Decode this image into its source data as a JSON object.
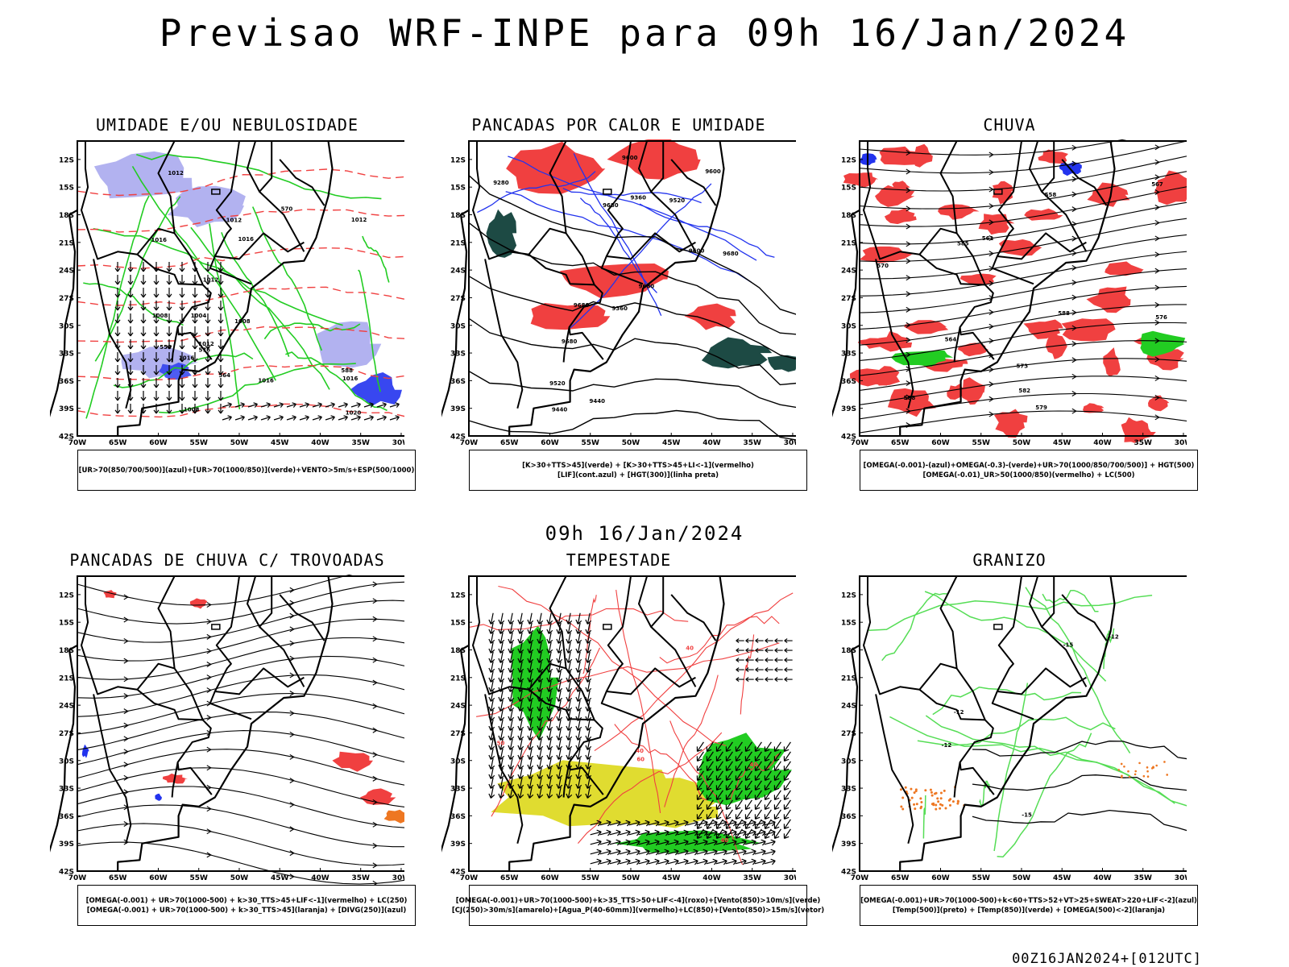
{
  "page": {
    "title": "Previsao WRF-INPE  para 09h 16/Jan/2024",
    "mid_title": "09h 16/Jan/2024",
    "footer": "00Z16JAN2024+[012UTC]"
  },
  "axes": {
    "lat_labels": [
      "12S",
      "15S",
      "18S",
      "21S",
      "24S",
      "27S",
      "30S",
      "33S",
      "36S",
      "39S",
      "42S"
    ],
    "lon_labels": [
      "70W",
      "65W",
      "60W",
      "55W",
      "50W",
      "45W",
      "40W",
      "35W",
      "30W"
    ]
  },
  "panels": [
    {
      "id": "umidade",
      "title": "UMIDADE E/OU NEBULOSIDADE",
      "legend": [
        "[UR>70(850/700/500)](azul)+[UR>70(1000/850)](verde)+VENTO>5m/s+ESP(500/1000)"
      ],
      "contour_labels": [
        "1016",
        "1016",
        "1016",
        "1012",
        "1020",
        "1016",
        "1012",
        "1008",
        "1004",
        "1012",
        "1008",
        "1012",
        "1008",
        "1012",
        "1016",
        "576",
        "570",
        "564",
        "558",
        "588"
      ]
    },
    {
      "id": "pancadas_calor",
      "title": "PANCADAS POR CALOR E UMIDADE",
      "legend": [
        "[K>30+TTS>45](verde) + [K>30+TTS>45+LI<-1](vermelho)",
        "[LIF](cont.azul) + [HGT(300)](linha preta)"
      ],
      "contour_labels": [
        "9680",
        "9680",
        "9680",
        "9680",
        "9600",
        "9600",
        "9520",
        "9520",
        "9440",
        "9440",
        "9360",
        "9360",
        "9280",
        "9600",
        "9680"
      ]
    },
    {
      "id": "chuva",
      "title": "CHUVA",
      "legend": [
        "[OMEGA(-0.001)-(azul)+OMEGA(-0.3)-(verde)+UR>70(1000/850/700/500)] + HGT(500)",
        "[OMEGA(-0.01)_UR>50(1000/850)(vermelho) + LC(500)"
      ],
      "contour_labels": [
        "588",
        "585",
        "582",
        "579",
        "576",
        "573",
        "570",
        "567",
        "564",
        "561",
        "558",
        "588"
      ]
    },
    {
      "id": "pancadas_trovoadas",
      "title": "PANCADAS DE CHUVA C/ TROVOADAS",
      "legend": [
        "[OMEGA(-0.001) + UR>70(1000-500) + k>30_TTS>45+LIF<-1](vermelho) + LC(250)",
        "[OMEGA(-0.001) + UR>70(1000-500) + k>30_TTS>45](laranja) + [DIVG(250)](azul)"
      ],
      "contour_labels": []
    },
    {
      "id": "tempestade",
      "title": "TEMPESTADE",
      "legend": [
        "[OMEGA(-0.001)+UR>70(1000-500)+k>35_TTS>50+LIF<-4](roxo)+[Vento(850)>10m/s](verde)",
        "[CJ(250)>30m/s](amarelo)+[Agua_P(40-60mm)](vermelho)+LC(850)+[Vento(850)>15m/s](vetor)"
      ],
      "contour_labels": [
        "60",
        "40",
        "40",
        "40",
        "50",
        "40"
      ]
    },
    {
      "id": "granizo",
      "title": "GRANIZO",
      "legend": [
        "[OMEGA(-0.001)+UR>70(1000-500)+k<60+TTS>52+VT>25+SWEAT>220+LIF<-2](azul)",
        "[Temp(500)](preto) + [Temp(850)](verde) + [OMEGA(500)<-2](laranja)"
      ],
      "contour_labels": [
        "-12",
        "-12",
        "-15",
        "-12",
        "-15"
      ]
    }
  ],
  "colors": {
    "red": "#f04040",
    "green": "#22cc22",
    "blue": "#2233ee",
    "lavender": "#aaaaee",
    "darkteal": "#1d4a44",
    "yellow": "#e0dc30",
    "orange": "#ee7722",
    "lightgreen": "#55dd55"
  }
}
